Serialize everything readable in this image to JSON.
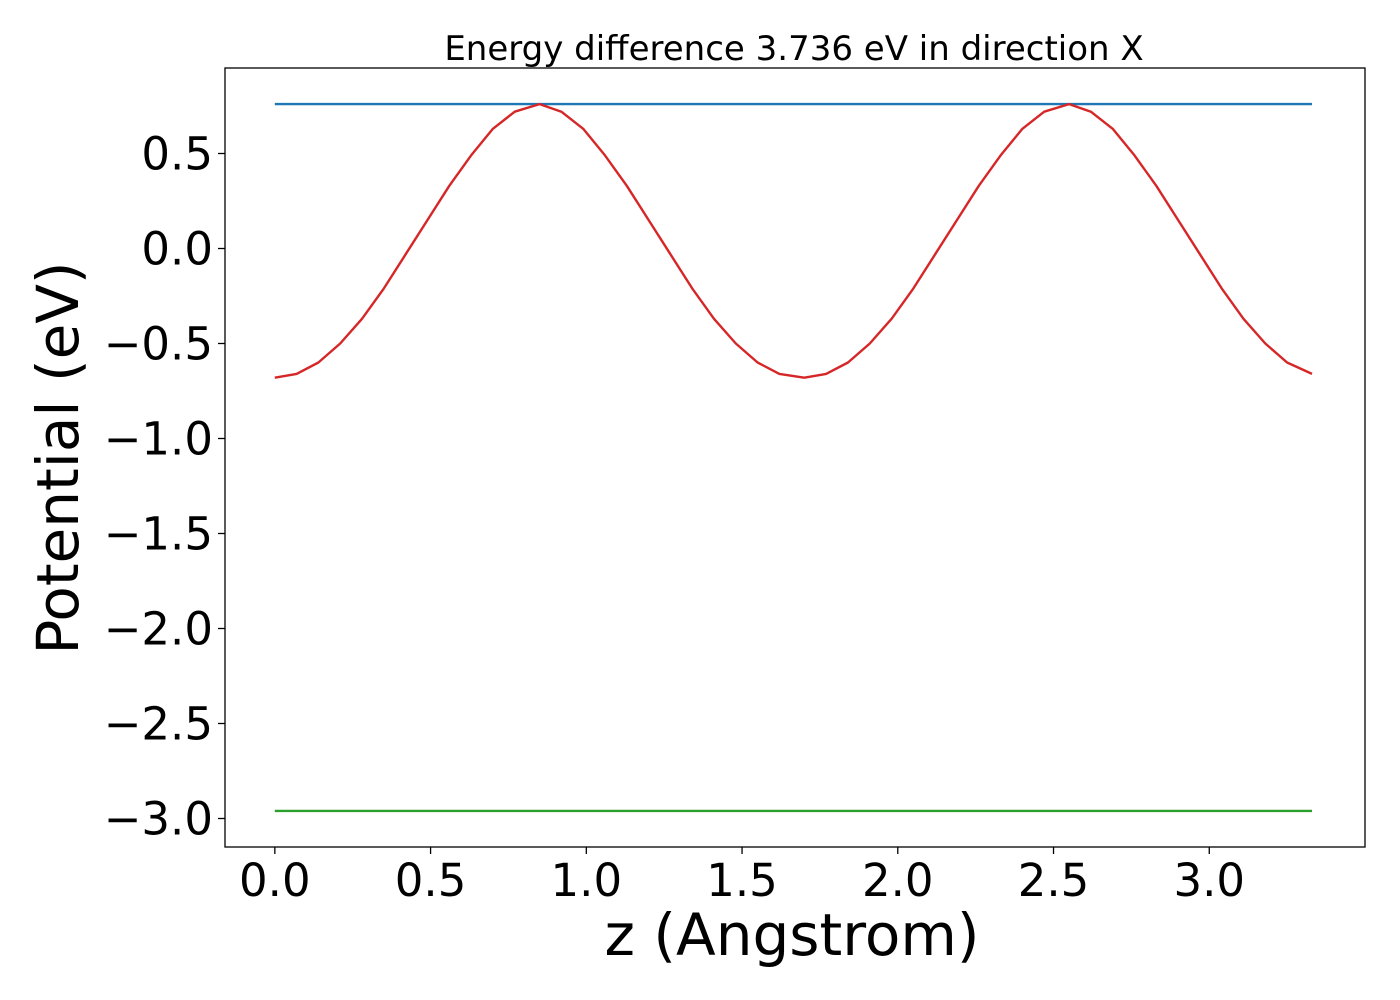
{
  "chart_data": {
    "type": "line",
    "title": "Energy difference 3.736 eV in direction X",
    "xlabel": "z (Angstrom)",
    "ylabel": "Potential (eV)",
    "xlim": [
      -0.16,
      3.5
    ],
    "ylim": [
      -3.15,
      0.95
    ],
    "xticks": [
      0.0,
      0.5,
      1.0,
      1.5,
      2.0,
      2.5,
      3.0
    ],
    "xtick_labels": [
      "0.0",
      "0.5",
      "1.0",
      "1.5",
      "2.0",
      "2.5",
      "3.0"
    ],
    "yticks": [
      0.5,
      0.0,
      -0.5,
      -1.0,
      -1.5,
      -2.0,
      -2.5,
      -3.0
    ],
    "ytick_labels": [
      "0.5",
      "0.0",
      "−0.5",
      "−1.0",
      "−1.5",
      "−2.0",
      "−2.5",
      "−3.0"
    ],
    "grid": false,
    "legend": "none",
    "series": [
      {
        "color": "#1f77b4",
        "x": [
          0.0,
          3.33
        ],
        "y": [
          0.76,
          0.76
        ]
      },
      {
        "color": "#d62728",
        "x": [
          0.0,
          0.07,
          0.14,
          0.21,
          0.28,
          0.35,
          0.42,
          0.49,
          0.56,
          0.63,
          0.7,
          0.77,
          0.85,
          0.92,
          0.99,
          1.06,
          1.13,
          1.2,
          1.27,
          1.34,
          1.41,
          1.48,
          1.55,
          1.62,
          1.7,
          1.77,
          1.84,
          1.91,
          1.98,
          2.05,
          2.12,
          2.19,
          2.26,
          2.33,
          2.4,
          2.47,
          2.55,
          2.62,
          2.69,
          2.76,
          2.83,
          2.9,
          2.97,
          3.04,
          3.11,
          3.18,
          3.25,
          3.33
        ],
        "y": [
          -0.68,
          -0.66,
          -0.6,
          -0.5,
          -0.37,
          -0.21,
          -0.03,
          0.15,
          0.33,
          0.49,
          0.63,
          0.72,
          0.76,
          0.72,
          0.63,
          0.49,
          0.33,
          0.15,
          -0.03,
          -0.21,
          -0.37,
          -0.5,
          -0.6,
          -0.66,
          -0.68,
          -0.66,
          -0.6,
          -0.5,
          -0.37,
          -0.21,
          -0.03,
          0.15,
          0.33,
          0.49,
          0.63,
          0.72,
          0.76,
          0.72,
          0.63,
          0.49,
          0.33,
          0.15,
          -0.03,
          -0.21,
          -0.37,
          -0.5,
          -0.6,
          -0.66
        ]
      },
      {
        "color": "#2ca02c",
        "x": [
          0.0,
          3.33
        ],
        "y": [
          -2.96,
          -2.96
        ]
      }
    ]
  }
}
